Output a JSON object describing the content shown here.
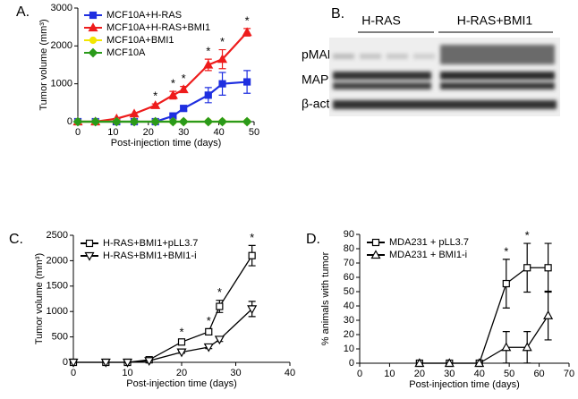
{
  "chart_data": [
    {
      "type": "line",
      "panel": "A.",
      "xlabel": "Post-injection time (days)",
      "ylabel": "Tumor volume (mm³)",
      "xlim": [
        0,
        50
      ],
      "xticks": [
        0,
        10,
        20,
        30,
        40,
        50
      ],
      "ylim": [
        0,
        3000
      ],
      "yticks": [
        0,
        1000,
        2000,
        3000
      ],
      "x": [
        0,
        5,
        11,
        16,
        22,
        27,
        30,
        37,
        41,
        48
      ],
      "series": [
        {
          "name": "MCF10A+H-RAS",
          "color": "#1f2fe0",
          "marker": "square",
          "filled": true,
          "values": [
            0,
            0,
            0,
            0,
            0,
            150,
            350,
            700,
            1000,
            1050
          ],
          "errors": [
            null,
            null,
            null,
            null,
            null,
            40,
            60,
            200,
            300,
            300
          ]
        },
        {
          "name": "MCF10A+H-RAS+BMI1",
          "color": "#ee1c1c",
          "marker": "triangle",
          "filled": true,
          "values": [
            0,
            0,
            80,
            210,
            430,
            700,
            850,
            1500,
            1650,
            2360
          ],
          "errors": [
            null,
            null,
            null,
            null,
            40,
            100,
            80,
            150,
            250,
            100
          ]
        },
        {
          "name": "MCF10A+BMI1",
          "color": "#f2e600",
          "marker": "circle",
          "filled": true,
          "values": [
            0,
            0,
            0,
            0,
            0,
            0,
            0,
            0,
            0,
            0
          ]
        },
        {
          "name": "MCF10A",
          "color": "#2a9a1a",
          "marker": "diamond",
          "filled": true,
          "values": [
            0,
            0,
            0,
            0,
            0,
            0,
            0,
            0,
            0,
            0
          ]
        }
      ],
      "annotations": [
        {
          "text": "*",
          "x": 22
        },
        {
          "text": "*",
          "x": 27
        },
        {
          "text": "*",
          "x": 30
        },
        {
          "text": "*",
          "x": 37
        },
        {
          "text": "*",
          "x": 41
        },
        {
          "text": "*",
          "x": 48
        }
      ]
    },
    {
      "type": "line",
      "panel": "C.",
      "xlabel": "Post-injection time (days)",
      "ylabel": "Tumor volume (mm³)",
      "xlim": [
        0,
        40
      ],
      "xticks": [
        0,
        10,
        20,
        30,
        40
      ],
      "ylim": [
        0,
        2500
      ],
      "yticks": [
        0,
        500,
        1000,
        1500,
        2000,
        2500
      ],
      "x": [
        0,
        6,
        10,
        14,
        20,
        25,
        27,
        33
      ],
      "series": [
        {
          "name": "H-RAS+BMI1+pLL3.7",
          "color": "#000000",
          "marker": "square",
          "filled": false,
          "values": [
            0,
            0,
            0,
            50,
            400,
            600,
            1100,
            2100
          ],
          "errors": [
            null,
            null,
            null,
            null,
            40,
            60,
            120,
            200
          ]
        },
        {
          "name": "H-RAS+BMI1+BMI1-i",
          "color": "#000000",
          "marker": "triangle-down",
          "filled": false,
          "values": [
            0,
            0,
            0,
            30,
            200,
            300,
            450,
            1050
          ],
          "errors": [
            null,
            null,
            null,
            null,
            20,
            30,
            40,
            150
          ]
        }
      ],
      "annotations": [
        {
          "text": "*",
          "x": 20
        },
        {
          "text": "*",
          "x": 25
        },
        {
          "text": "*",
          "x": 27
        },
        {
          "text": "*",
          "x": 33
        }
      ]
    },
    {
      "type": "line",
      "panel": "D.",
      "xlabel": "Post-injection time (days)",
      "ylabel": "% animals with tumor",
      "xlim": [
        0,
        70
      ],
      "xticks": [
        0,
        10,
        20,
        30,
        40,
        50,
        60,
        70
      ],
      "ylim": [
        0,
        90
      ],
      "yticks": [
        0,
        10,
        20,
        30,
        40,
        50,
        60,
        70,
        80,
        90
      ],
      "x": [
        20,
        30,
        40,
        49,
        56,
        63
      ],
      "series": [
        {
          "name": "MDA231 + pLL3.7",
          "color": "#000000",
          "marker": "square",
          "filled": false,
          "values": [
            0,
            0,
            0,
            55.6,
            66.7,
            66.7
          ],
          "errors": [
            null,
            null,
            null,
            17,
            17,
            17
          ]
        },
        {
          "name": "MDA231 + BMI1-i",
          "color": "#000000",
          "marker": "triangle",
          "filled": false,
          "values": [
            0,
            0,
            0,
            11.1,
            11.1,
            33.3
          ],
          "errors": [
            null,
            null,
            null,
            11,
            11,
            17
          ]
        }
      ],
      "annotations": [
        {
          "text": "*",
          "x": 49
        },
        {
          "text": "*",
          "x": 56
        }
      ]
    }
  ],
  "blot": {
    "panel": "B.",
    "columns": [
      "H-RAS",
      "H-RAS+BMI1"
    ],
    "rows": [
      "pMAPK",
      "MAPK",
      "β-actin"
    ]
  }
}
